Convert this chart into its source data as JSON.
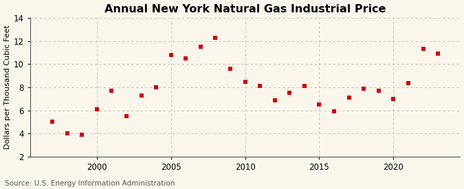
{
  "title": "Annual New York Natural Gas Industrial Price",
  "ylabel": "Dollars per Thousand Cubic Feet",
  "source": "Source: U.S. Energy Information Administration",
  "background_color": "#faf6ec",
  "years": [
    1997,
    1998,
    1999,
    2000,
    2001,
    2002,
    2003,
    2004,
    2005,
    2006,
    2007,
    2008,
    2009,
    2010,
    2011,
    2012,
    2013,
    2014,
    2015,
    2016,
    2017,
    2018,
    2019,
    2020,
    2021,
    2022,
    2023
  ],
  "values": [
    5.05,
    4.0,
    3.9,
    6.1,
    7.7,
    5.5,
    7.3,
    8.0,
    10.8,
    10.5,
    11.5,
    12.3,
    9.6,
    8.5,
    8.1,
    6.9,
    7.5,
    8.1,
    6.5,
    5.95,
    7.1,
    7.9,
    7.7,
    7.0,
    8.35,
    11.3,
    10.9
  ],
  "marker_color": "#cc0000",
  "marker_size": 18,
  "ylim": [
    2,
    14
  ],
  "xlim": [
    1995.5,
    2024.5
  ],
  "yticks": [
    2,
    4,
    6,
    8,
    10,
    12,
    14
  ],
  "xticks": [
    2000,
    2005,
    2010,
    2015,
    2020
  ],
  "grid_color": "#bbbbaa",
  "title_fontsize": 11.5,
  "label_fontsize": 8,
  "tick_fontsize": 8.5,
  "source_fontsize": 7.5
}
